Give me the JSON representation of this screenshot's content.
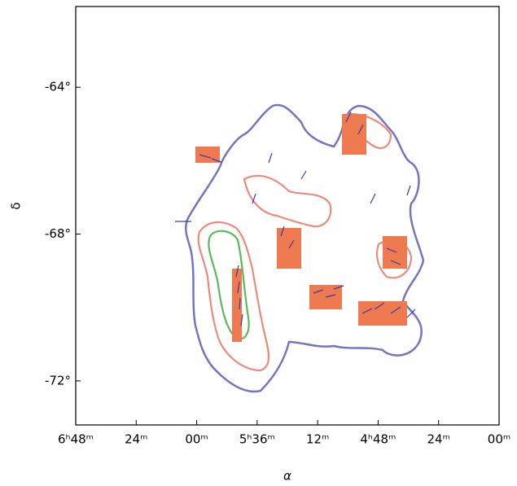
{
  "chart_data": {
    "type": "map",
    "xlabel": "α",
    "ylabel": "δ",
    "xlim": [
      6.8,
      4.0
    ],
    "ylim": [
      -73.2,
      -61.8
    ],
    "xticks": [
      {
        "value": 6.8,
        "label": "6ʰ48ᵐ"
      },
      {
        "value": 6.4,
        "label": "24ᵐ"
      },
      {
        "value": 6.0,
        "label": "00ᵐ"
      },
      {
        "value": 5.6,
        "label": "5ʰ36ᵐ"
      },
      {
        "value": 5.2,
        "label": "12ᵐ"
      },
      {
        "value": 4.8,
        "label": "4ʰ48ᵐ"
      },
      {
        "value": 4.4,
        "label": "24ᵐ"
      },
      {
        "value": 4.0,
        "label": "00ᵐ"
      }
    ],
    "yticks": [
      {
        "value": -64,
        "label": "-64°"
      },
      {
        "value": -68,
        "label": "-68°"
      },
      {
        "value": -72,
        "label": "-72°"
      }
    ]
  }
}
